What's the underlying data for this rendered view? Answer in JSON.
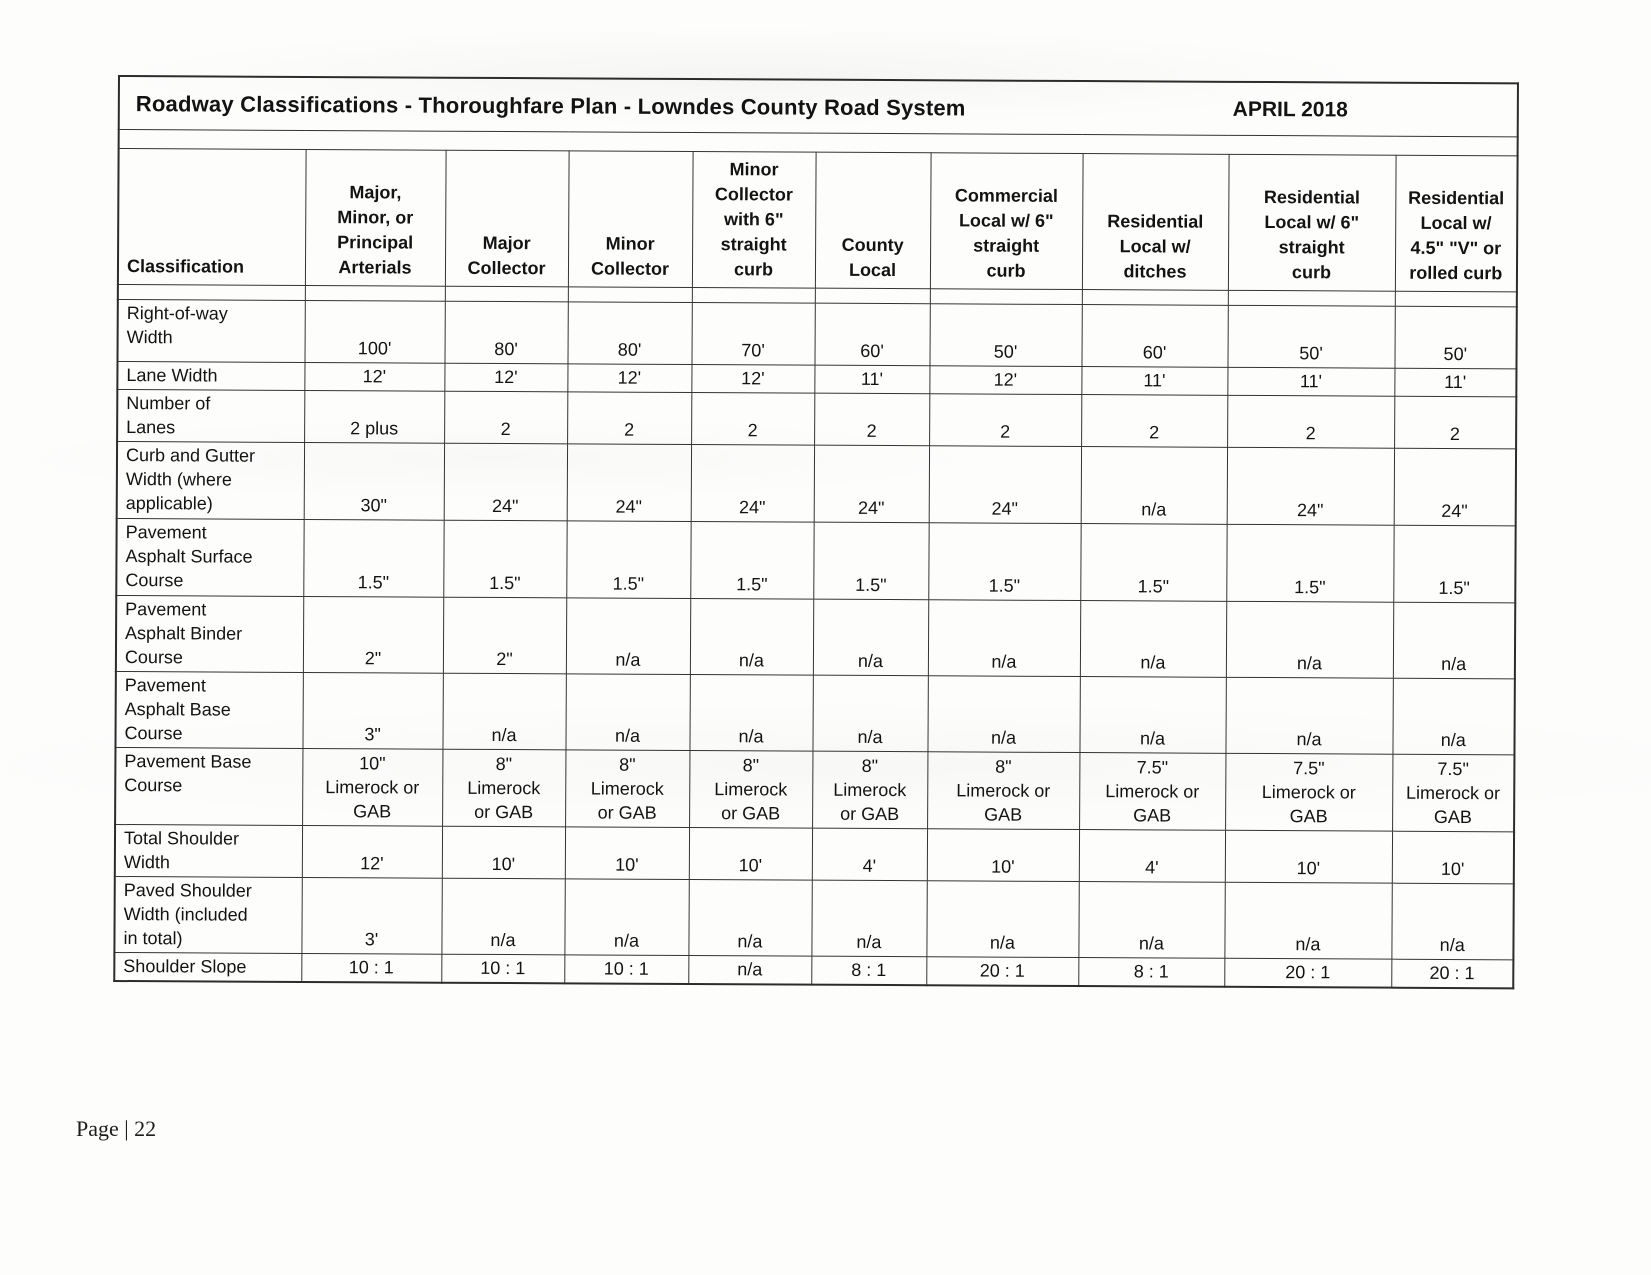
{
  "title": {
    "text": "Roadway Classifications - Thoroughfare Plan - Lowndes County Road System",
    "date": "APRIL 2018"
  },
  "page": {
    "footer": "Page | 22"
  },
  "table": {
    "corner_header": "Classification",
    "columns": [
      "Major,\nMinor, or\nPrincipal\nArterials",
      "Major\nCollector",
      "Minor\nCollector",
      "Minor\nCollector\nwith 6\"\nstraight\ncurb",
      "County\nLocal",
      "Commercial\nLocal w/ 6\"\nstraight\ncurb",
      "Residential\nLocal w/\nditches",
      "Residential\nLocal w/ 6\"\nstraight\ncurb",
      "Residential\nLocal w/\n4.5\" \"V\" or\nrolled curb"
    ],
    "rows": [
      {
        "label": "Right-of-way\nWidth",
        "values": [
          "100'",
          "80'",
          "80'",
          "70'",
          "60'",
          "50'",
          "60'",
          "50'",
          "50'"
        ]
      },
      {
        "label": "Lane Width",
        "values": [
          "12'",
          "12'",
          "12'",
          "12'",
          "11'",
          "12'",
          "11'",
          "11'",
          "11'"
        ]
      },
      {
        "label": "Number of\nLanes",
        "values": [
          "2 plus",
          "2",
          "2",
          "2",
          "2",
          "2",
          "2",
          "2",
          "2"
        ]
      },
      {
        "label": "Curb and Gutter\nWidth (where\napplicable)",
        "values": [
          "30\"",
          "24\"",
          "24\"",
          "24\"",
          "24\"",
          "24\"",
          "n/a",
          "24\"",
          "24\""
        ]
      },
      {
        "label": "Pavement\nAsphalt Surface\nCourse",
        "values": [
          "1.5\"",
          "1.5\"",
          "1.5\"",
          "1.5\"",
          "1.5\"",
          "1.5\"",
          "1.5\"",
          "1.5\"",
          "1.5\""
        ]
      },
      {
        "label": "Pavement\nAsphalt Binder\nCourse",
        "values": [
          "2\"",
          "2\"",
          "n/a",
          "n/a",
          "n/a",
          "n/a",
          "n/a",
          "n/a",
          "n/a"
        ]
      },
      {
        "label": "Pavement\nAsphalt Base\nCourse",
        "values": [
          "3\"",
          "n/a",
          "n/a",
          "n/a",
          "n/a",
          "n/a",
          "n/a",
          "n/a",
          "n/a"
        ]
      },
      {
        "label": "Pavement Base\nCourse",
        "values": [
          "10\"\nLimerock or\nGAB",
          "8\"\nLimerock\nor GAB",
          "8\"\nLimerock\nor GAB",
          "8\"\nLimerock\nor GAB",
          "8\"\nLimerock\nor GAB",
          "8\"\nLimerock or\nGAB",
          "7.5\"\nLimerock or\nGAB",
          "7.5\"\nLimerock or\nGAB",
          "7.5\"\nLimerock or\nGAB"
        ]
      },
      {
        "label": "Total Shoulder\nWidth",
        "values": [
          "12'",
          "10'",
          "10'",
          "10'",
          "4'",
          "10'",
          "4'",
          "10'",
          "10'"
        ]
      },
      {
        "label": "Paved Shoulder\nWidth (included\nin total)",
        "values": [
          "3'",
          "n/a",
          "n/a",
          "n/a",
          "n/a",
          "n/a",
          "n/a",
          "n/a",
          "n/a"
        ]
      },
      {
        "label": "Shoulder Slope",
        "values": [
          "10 : 1",
          "10 : 1",
          "10 : 1",
          "n/a",
          "8 : 1",
          "20 : 1",
          "8 : 1",
          "20 : 1",
          "20 : 1"
        ]
      }
    ]
  }
}
